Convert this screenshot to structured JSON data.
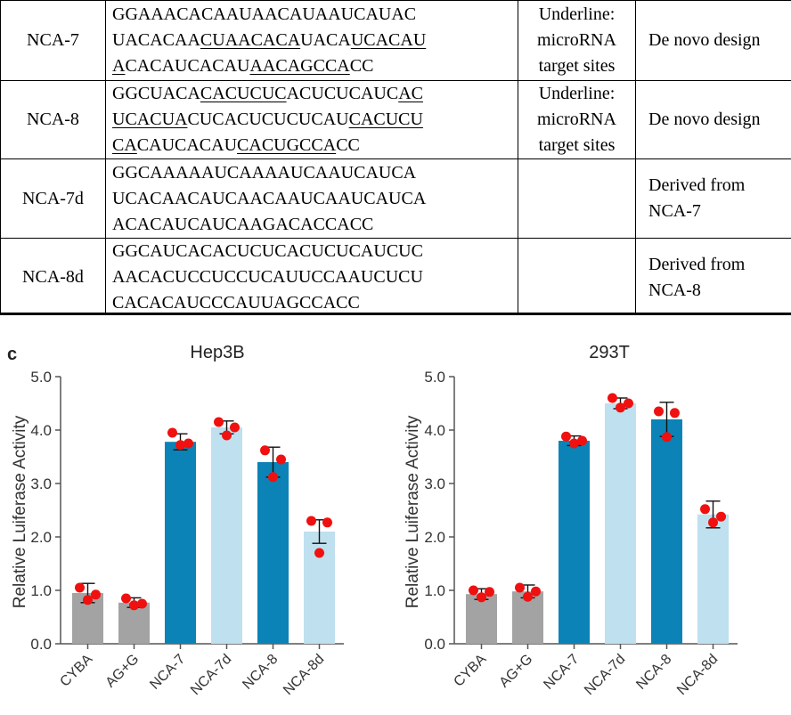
{
  "table": {
    "rows": [
      {
        "name": "NCA-7",
        "lines": [
          [
            {
              "t": "GGAAACACAAUAACAUAAUCAUAC",
              "u": false
            }
          ],
          [
            {
              "t": "UACACAA",
              "u": false
            },
            {
              "t": "CUAACACA",
              "u": true
            },
            {
              "t": "UACA",
              "u": false
            },
            {
              "t": "UCACAU",
              "u": true
            }
          ],
          [
            {
              "t": "A",
              "u": true
            },
            {
              "t": "CACAUCACAU",
              "u": false
            },
            {
              "t": "AACAGCCA",
              "u": true
            },
            {
              "t": "CC",
              "u": false
            }
          ]
        ],
        "note": [
          "Underline:",
          "microRNA",
          "target sites"
        ],
        "origin": [
          "De novo design"
        ]
      },
      {
        "name": "NCA-8",
        "lines": [
          [
            {
              "t": "GGCUACA",
              "u": false
            },
            {
              "t": "CACUCUC",
              "u": true
            },
            {
              "t": "ACUCUCAUC",
              "u": false
            },
            {
              "t": "AC",
              "u": true
            }
          ],
          [
            {
              "t": "UCACUA",
              "u": true
            },
            {
              "t": "CUCACUCUCUCAU",
              "u": false
            },
            {
              "t": "CACUCU",
              "u": true
            }
          ],
          [
            {
              "t": "CA",
              "u": true
            },
            {
              "t": "CAUCACAU",
              "u": false
            },
            {
              "t": "CACUGCCA",
              "u": true
            },
            {
              "t": "CC",
              "u": false
            }
          ]
        ],
        "note": [
          "Underline:",
          "microRNA",
          "target sites"
        ],
        "origin": [
          "De novo design"
        ]
      },
      {
        "name": "NCA-7d",
        "lines": [
          [
            {
              "t": "GGCAAAAAUCAAAAUCAAUCAUCA",
              "u": false
            }
          ],
          [
            {
              "t": "UCACAACAUCAACAAUCAAUCAUCA",
              "u": false
            }
          ],
          [
            {
              "t": "ACACAUCAUCAAGACACCACC",
              "u": false
            }
          ]
        ],
        "note": [],
        "origin": [
          "Derived from",
          "NCA-7"
        ]
      },
      {
        "name": "NCA-8d",
        "lines": [
          [
            {
              "t": "GGCAUCACACUCUCACUCUCAUCUC",
              "u": false
            }
          ],
          [
            {
              "t": "AACACUCCUCCUCAUUCCAAUCUCU",
              "u": false
            }
          ],
          [
            {
              "t": "CACACAUCCCAUUAGCCACC",
              "u": false
            }
          ]
        ],
        "note": [],
        "origin": [
          "Derived from",
          "NCA-8"
        ]
      }
    ]
  },
  "panel_label": "c",
  "colors": {
    "gray": "#a3a3a3",
    "dark_blue": "#0c83b6",
    "light_blue": "#bfe0ee",
    "dot": "#f01010",
    "axis": "#555555"
  },
  "chart_data": [
    {
      "type": "bar",
      "title": "Hep3B",
      "xlabel": "",
      "ylabel": "Relative Luiferase Activity",
      "ylim": [
        0,
        5
      ],
      "yticks": [
        "0.0",
        "1.0",
        "2.0",
        "3.0",
        "4.0",
        "5.0"
      ],
      "categories": [
        "CYBA",
        "AG+G",
        "NCA-7",
        "NCA-7d",
        "NCA-8",
        "NCA-8d"
      ],
      "values": [
        0.95,
        0.77,
        3.78,
        4.05,
        3.4,
        2.1
      ],
      "error": [
        0.18,
        0.09,
        0.15,
        0.12,
        0.28,
        0.22
      ],
      "bar_colors": [
        "gray",
        "gray",
        "dark_blue",
        "light_blue",
        "dark_blue",
        "light_blue"
      ],
      "points": [
        [
          1.05,
          0.92,
          0.82
        ],
        [
          0.85,
          0.75,
          0.72
        ],
        [
          3.95,
          3.75,
          3.72
        ],
        [
          4.15,
          4.05,
          3.9
        ],
        [
          3.62,
          3.45,
          3.12
        ],
        [
          2.3,
          2.27,
          1.7
        ]
      ]
    },
    {
      "type": "bar",
      "title": "293T",
      "xlabel": "",
      "ylabel": "Relative Luiferase Activity",
      "ylim": [
        0,
        5
      ],
      "yticks": [
        "0.0",
        "1.0",
        "2.0",
        "3.0",
        "4.0",
        "5.0"
      ],
      "categories": [
        "CYBA",
        "AG+G",
        "NCA-7",
        "NCA-7d",
        "NCA-8",
        "NCA-8d"
      ],
      "values": [
        0.93,
        0.98,
        3.8,
        4.5,
        4.2,
        2.42
      ],
      "error": [
        0.1,
        0.12,
        0.09,
        0.1,
        0.32,
        0.25
      ],
      "bar_colors": [
        "gray",
        "gray",
        "dark_blue",
        "light_blue",
        "dark_blue",
        "light_blue"
      ],
      "points": [
        [
          1.0,
          0.97,
          0.87
        ],
        [
          1.05,
          0.98,
          0.88
        ],
        [
          3.88,
          3.8,
          3.75
        ],
        [
          4.6,
          4.5,
          4.42
        ],
        [
          4.35,
          4.32,
          3.87
        ],
        [
          2.52,
          2.38,
          2.27
        ]
      ]
    }
  ]
}
